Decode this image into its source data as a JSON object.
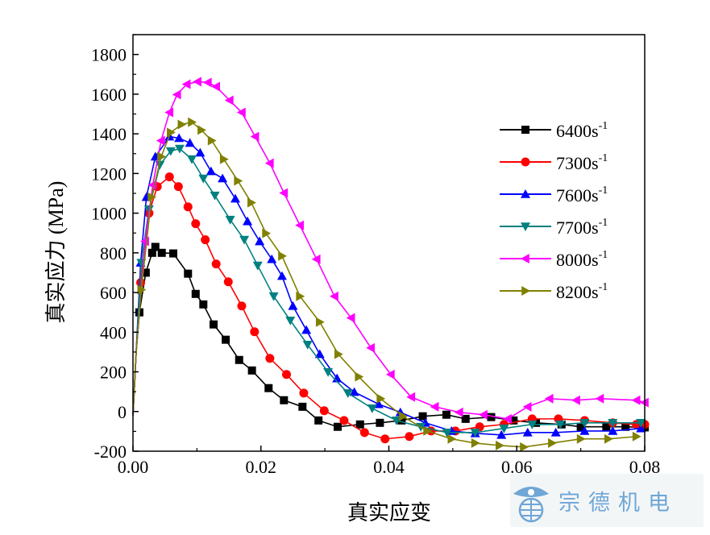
{
  "chart_data": {
    "type": "line",
    "xlabel": "真实应变",
    "ylabel": "真实应力 (MPa)",
    "xlim": [
      0,
      0.08
    ],
    "ylim": [
      -200,
      1900
    ],
    "xticks": [
      "0.00",
      "0.02",
      "0.04",
      "0.06",
      "0.08"
    ],
    "yticks": [
      "-200",
      "0",
      "200",
      "400",
      "600",
      "800",
      "1000",
      "1200",
      "1400",
      "1600",
      "1800"
    ],
    "legend_position": "right",
    "grid": false,
    "series": [
      {
        "name": "6400s",
        "sup": "-1",
        "color": "#000000",
        "marker": "square",
        "points": [
          [
            0,
            -20
          ],
          [
            0.0005,
            300
          ],
          [
            0.001,
            500
          ],
          [
            0.002,
            700
          ],
          [
            0.003,
            800
          ],
          [
            0.0035,
            830
          ],
          [
            0.0045,
            800
          ],
          [
            0.0063,
            797
          ],
          [
            0.0086,
            695
          ],
          [
            0.0098,
            593
          ],
          [
            0.011,
            540
          ],
          [
            0.0126,
            439
          ],
          [
            0.0145,
            362
          ],
          [
            0.0166,
            260
          ],
          [
            0.0186,
            207
          ],
          [
            0.0212,
            118
          ],
          [
            0.0236,
            57
          ],
          [
            0.0265,
            24
          ],
          [
            0.029,
            -45
          ],
          [
            0.032,
            -77
          ],
          [
            0.0355,
            -65
          ],
          [
            0.0386,
            -57
          ],
          [
            0.042,
            -45
          ],
          [
            0.0453,
            -24
          ],
          [
            0.049,
            -16
          ],
          [
            0.052,
            -37
          ],
          [
            0.056,
            -28
          ],
          [
            0.0595,
            -45
          ],
          [
            0.063,
            -57
          ],
          [
            0.067,
            -65
          ],
          [
            0.07,
            -77
          ],
          [
            0.074,
            -77
          ],
          [
            0.077,
            -77
          ],
          [
            0.08,
            -80
          ]
        ]
      },
      {
        "name": "7300s",
        "sup": "-1",
        "color": "#ff0000",
        "marker": "circle",
        "points": [
          [
            0,
            -20
          ],
          [
            0.0005,
            300
          ],
          [
            0.0012,
            650
          ],
          [
            0.0025,
            1000
          ],
          [
            0.0038,
            1134
          ],
          [
            0.0057,
            1183
          ],
          [
            0.0071,
            1134
          ],
          [
            0.0086,
            1032
          ],
          [
            0.0098,
            947
          ],
          [
            0.0113,
            866
          ],
          [
            0.013,
            744
          ],
          [
            0.0149,
            654
          ],
          [
            0.017,
            532
          ],
          [
            0.019,
            402
          ],
          [
            0.0214,
            268
          ],
          [
            0.024,
            187
          ],
          [
            0.0267,
            93
          ],
          [
            0.0299,
            4
          ],
          [
            0.033,
            -45
          ],
          [
            0.0362,
            -106
          ],
          [
            0.0394,
            -138
          ],
          [
            0.0432,
            -126
          ],
          [
            0.0466,
            -98
          ],
          [
            0.0504,
            -98
          ],
          [
            0.0542,
            -77
          ],
          [
            0.058,
            -65
          ],
          [
            0.0624,
            -37
          ],
          [
            0.0665,
            -37
          ],
          [
            0.0706,
            -45
          ],
          [
            0.075,
            -57
          ],
          [
            0.0787,
            -65
          ],
          [
            0.08,
            -65
          ]
        ]
      },
      {
        "name": "7600s",
        "sup": "-1",
        "color": "#0000ff",
        "marker": "triangle-up",
        "points": [
          [
            0,
            -20
          ],
          [
            0.0005,
            300
          ],
          [
            0.0012,
            750
          ],
          [
            0.0021,
            1081
          ],
          [
            0.0035,
            1285
          ],
          [
            0.0057,
            1386
          ],
          [
            0.0072,
            1378
          ],
          [
            0.0089,
            1354
          ],
          [
            0.0105,
            1305
          ],
          [
            0.0122,
            1211
          ],
          [
            0.014,
            1175
          ],
          [
            0.016,
            1073
          ],
          [
            0.0179,
            959
          ],
          [
            0.0198,
            858
          ],
          [
            0.0217,
            768
          ],
          [
            0.0233,
            683
          ],
          [
            0.025,
            532
          ],
          [
            0.0271,
            411
          ],
          [
            0.0292,
            289
          ],
          [
            0.0319,
            167
          ],
          [
            0.0346,
            98
          ],
          [
            0.0384,
            37
          ],
          [
            0.0418,
            -4
          ],
          [
            0.0457,
            -57
          ],
          [
            0.0498,
            -98
          ],
          [
            0.0535,
            -110
          ],
          [
            0.0576,
            -118
          ],
          [
            0.0617,
            -106
          ],
          [
            0.0661,
            -106
          ],
          [
            0.0706,
            -98
          ],
          [
            0.075,
            -98
          ],
          [
            0.0794,
            -85
          ]
        ]
      },
      {
        "name": "7700s",
        "sup": "-1",
        "color": "#008080",
        "marker": "triangle-down",
        "points": [
          [
            0,
            -20
          ],
          [
            0.0005,
            300
          ],
          [
            0.0013,
            750
          ],
          [
            0.0025,
            1020
          ],
          [
            0.0042,
            1244
          ],
          [
            0.0059,
            1313
          ],
          [
            0.0073,
            1325
          ],
          [
            0.0092,
            1272
          ],
          [
            0.011,
            1175
          ],
          [
            0.0128,
            1089
          ],
          [
            0.0152,
            967
          ],
          [
            0.0174,
            866
          ],
          [
            0.0195,
            736
          ],
          [
            0.022,
            581
          ],
          [
            0.0246,
            459
          ],
          [
            0.0273,
            337
          ],
          [
            0.0305,
            199
          ],
          [
            0.0336,
            93
          ],
          [
            0.0374,
            16
          ],
          [
            0.0412,
            -45
          ],
          [
            0.045,
            -77
          ],
          [
            0.0491,
            -106
          ],
          [
            0.0535,
            -106
          ],
          [
            0.058,
            -85
          ],
          [
            0.0624,
            -65
          ],
          [
            0.0668,
            -65
          ],
          [
            0.0706,
            -57
          ],
          [
            0.075,
            -57
          ],
          [
            0.0794,
            -57
          ]
        ]
      },
      {
        "name": "8000s",
        "sup": "-1",
        "color": "#ff00ff",
        "marker": "triangle-left",
        "points": [
          [
            0,
            -20
          ],
          [
            0.0005,
            300
          ],
          [
            0.0019,
            858
          ],
          [
            0.0031,
            1142
          ],
          [
            0.0044,
            1366
          ],
          [
            0.0057,
            1508
          ],
          [
            0.0069,
            1598
          ],
          [
            0.0084,
            1650
          ],
          [
            0.0101,
            1663
          ],
          [
            0.0117,
            1659
          ],
          [
            0.013,
            1638
          ],
          [
            0.0151,
            1569
          ],
          [
            0.017,
            1508
          ],
          [
            0.0191,
            1386
          ],
          [
            0.0214,
            1252
          ],
          [
            0.0236,
            1102
          ],
          [
            0.0261,
            939
          ],
          [
            0.0287,
            768
          ],
          [
            0.0315,
            581
          ],
          [
            0.0341,
            472
          ],
          [
            0.0372,
            321
          ],
          [
            0.0403,
            187
          ],
          [
            0.0435,
            73
          ],
          [
            0.0472,
            24
          ],
          [
            0.051,
            -4
          ],
          [
            0.0548,
            -16
          ],
          [
            0.0586,
            -37
          ],
          [
            0.0617,
            24
          ],
          [
            0.0651,
            65
          ],
          [
            0.0693,
            57
          ],
          [
            0.073,
            65
          ],
          [
            0.0787,
            57
          ],
          [
            0.08,
            45
          ]
        ]
      },
      {
        "name": "8200s",
        "sup": "-1",
        "color": "#808000",
        "marker": "triangle-right",
        "points": [
          [
            0,
            -20
          ],
          [
            0.0005,
            300
          ],
          [
            0.0013,
            614
          ],
          [
            0.0029,
            1081
          ],
          [
            0.0044,
            1285
          ],
          [
            0.0059,
            1407
          ],
          [
            0.0076,
            1447
          ],
          [
            0.0092,
            1459
          ],
          [
            0.0107,
            1419
          ],
          [
            0.0123,
            1366
          ],
          [
            0.0142,
            1272
          ],
          [
            0.0164,
            1163
          ],
          [
            0.0185,
            1053
          ],
          [
            0.0208,
            898
          ],
          [
            0.0233,
            784
          ],
          [
            0.0261,
            581
          ],
          [
            0.0292,
            451
          ],
          [
            0.0321,
            289
          ],
          [
            0.0353,
            175
          ],
          [
            0.0387,
            65
          ],
          [
            0.0422,
            -24
          ],
          [
            0.046,
            -98
          ],
          [
            0.0498,
            -138
          ],
          [
            0.0535,
            -159
          ],
          [
            0.0573,
            -171
          ],
          [
            0.0611,
            -179
          ],
          [
            0.0655,
            -159
          ],
          [
            0.07,
            -138
          ],
          [
            0.0743,
            -138
          ],
          [
            0.0787,
            -126
          ]
        ]
      }
    ]
  },
  "watermark": {
    "text": "宗德机电",
    "color": "#6fa6d6"
  }
}
